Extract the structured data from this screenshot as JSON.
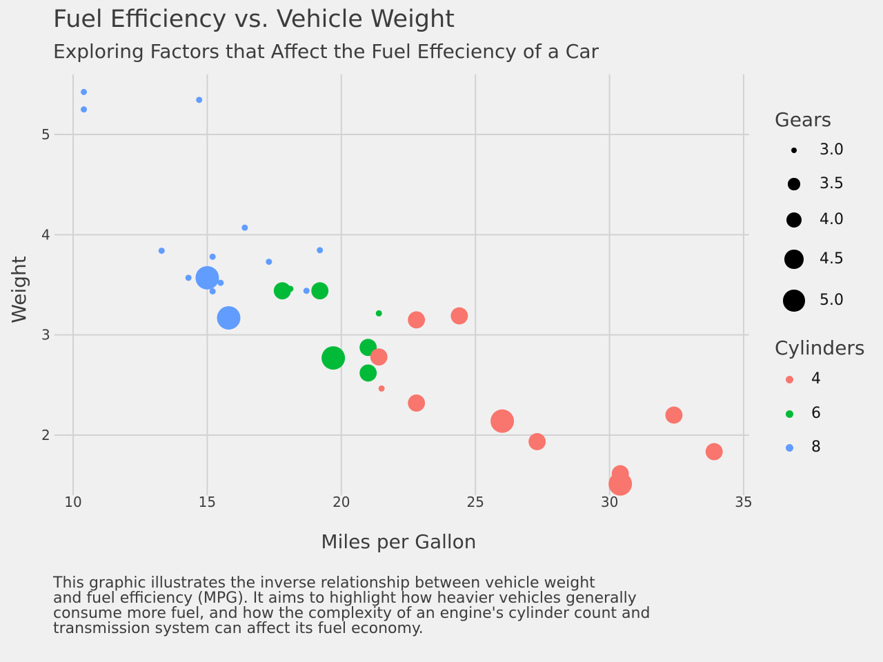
{
  "chart_data": {
    "type": "scatter",
    "title": "Fuel Efficiency vs. Vehicle Weight",
    "subtitle": "Exploring Factors that Affect the Fuel Effeciency of a Car",
    "xlabel": "Miles per Gallon",
    "ylabel": "Weight",
    "caption": "This graphic illustrates the inverse relationship between vehicle weight\nand fuel efficiency (MPG). It aims to highlight how heavier vehicles generally\nconsume more fuel, and how the complexity of an engine's cylinder count and\ntransmission system can affect its fuel economy.",
    "xlim": [
      9.3,
      35.2
    ],
    "ylim": [
      1.4,
      5.6
    ],
    "xticks": [
      10,
      15,
      20,
      25,
      30,
      35
    ],
    "xtick_labels": [
      "10",
      "15",
      "20",
      "25",
      "30",
      "35"
    ],
    "yticks": [
      2,
      3,
      4,
      5
    ],
    "ytick_labels": [
      "2",
      "3",
      "4",
      "5"
    ],
    "grid": true,
    "legend_position": "right",
    "size_legend": {
      "title": "Gears",
      "values": [
        3.0,
        3.5,
        4.0,
        4.5,
        5.0
      ],
      "labels": [
        "3.0",
        "3.5",
        "4.0",
        "4.5",
        "5.0"
      ]
    },
    "color_legend": {
      "title": "Cylinders",
      "labels": [
        "4",
        "6",
        "8"
      ],
      "colors": [
        "#f8766d",
        "#00ba38",
        "#619cff"
      ]
    },
    "points": [
      {
        "mpg": 21.0,
        "wt": 2.62,
        "cyl": 6,
        "gear": 4
      },
      {
        "mpg": 21.0,
        "wt": 2.875,
        "cyl": 6,
        "gear": 4
      },
      {
        "mpg": 22.8,
        "wt": 2.32,
        "cyl": 4,
        "gear": 4
      },
      {
        "mpg": 21.4,
        "wt": 3.215,
        "cyl": 6,
        "gear": 3
      },
      {
        "mpg": 18.7,
        "wt": 3.44,
        "cyl": 8,
        "gear": 3
      },
      {
        "mpg": 18.1,
        "wt": 3.46,
        "cyl": 6,
        "gear": 3
      },
      {
        "mpg": 14.3,
        "wt": 3.57,
        "cyl": 8,
        "gear": 3
      },
      {
        "mpg": 24.4,
        "wt": 3.19,
        "cyl": 4,
        "gear": 4
      },
      {
        "mpg": 22.8,
        "wt": 3.15,
        "cyl": 4,
        "gear": 4
      },
      {
        "mpg": 19.2,
        "wt": 3.44,
        "cyl": 6,
        "gear": 4
      },
      {
        "mpg": 17.8,
        "wt": 3.44,
        "cyl": 6,
        "gear": 4
      },
      {
        "mpg": 16.4,
        "wt": 4.07,
        "cyl": 8,
        "gear": 3
      },
      {
        "mpg": 17.3,
        "wt": 3.73,
        "cyl": 8,
        "gear": 3
      },
      {
        "mpg": 15.2,
        "wt": 3.78,
        "cyl": 8,
        "gear": 3
      },
      {
        "mpg": 10.4,
        "wt": 5.25,
        "cyl": 8,
        "gear": 3
      },
      {
        "mpg": 10.4,
        "wt": 5.424,
        "cyl": 8,
        "gear": 3
      },
      {
        "mpg": 14.7,
        "wt": 5.345,
        "cyl": 8,
        "gear": 3
      },
      {
        "mpg": 32.4,
        "wt": 2.2,
        "cyl": 4,
        "gear": 4
      },
      {
        "mpg": 30.4,
        "wt": 1.615,
        "cyl": 4,
        "gear": 4
      },
      {
        "mpg": 33.9,
        "wt": 1.835,
        "cyl": 4,
        "gear": 4
      },
      {
        "mpg": 21.5,
        "wt": 2.465,
        "cyl": 4,
        "gear": 3
      },
      {
        "mpg": 15.5,
        "wt": 3.52,
        "cyl": 8,
        "gear": 3
      },
      {
        "mpg": 15.2,
        "wt": 3.435,
        "cyl": 8,
        "gear": 3
      },
      {
        "mpg": 13.3,
        "wt": 3.84,
        "cyl": 8,
        "gear": 3
      },
      {
        "mpg": 19.2,
        "wt": 3.845,
        "cyl": 8,
        "gear": 3
      },
      {
        "mpg": 27.3,
        "wt": 1.935,
        "cyl": 4,
        "gear": 4
      },
      {
        "mpg": 26.0,
        "wt": 2.14,
        "cyl": 4,
        "gear": 5
      },
      {
        "mpg": 30.4,
        "wt": 1.513,
        "cyl": 4,
        "gear": 5
      },
      {
        "mpg": 15.8,
        "wt": 3.17,
        "cyl": 8,
        "gear": 5
      },
      {
        "mpg": 19.7,
        "wt": 2.77,
        "cyl": 6,
        "gear": 5
      },
      {
        "mpg": 15.0,
        "wt": 3.57,
        "cyl": 8,
        "gear": 5
      },
      {
        "mpg": 21.4,
        "wt": 2.78,
        "cyl": 4,
        "gear": 4
      }
    ]
  }
}
